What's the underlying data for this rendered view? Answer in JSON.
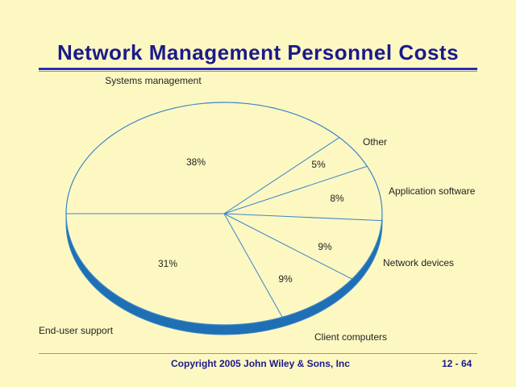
{
  "slide": {
    "title": "Network Management Personnel Costs",
    "copyright": "Copyright 2005 John Wiley & Sons, Inc",
    "page": "12 - 64"
  },
  "colors": {
    "background": "#fdf8c2",
    "title": "#1a1a8c",
    "pie_fill": "#fdf8c2",
    "pie_edge": "#3a86c8",
    "pie_side": "#1f6fb4"
  },
  "chart_data": {
    "type": "pie",
    "style": "3d-tilted",
    "title": "",
    "slices": [
      {
        "label": "Systems management",
        "value": 38,
        "value_label": "38%"
      },
      {
        "label": "Other",
        "value": 5,
        "value_label": "5%"
      },
      {
        "label": "Application software",
        "value": 8,
        "value_label": "8%"
      },
      {
        "label": "Network devices",
        "value": 9,
        "value_label": "9%"
      },
      {
        "label": "Client computers",
        "value": 9,
        "value_label": "9%"
      },
      {
        "label": "End-user support",
        "value": 31,
        "value_label": "31%"
      }
    ]
  }
}
